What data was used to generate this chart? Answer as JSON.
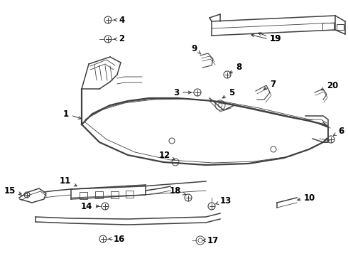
{
  "background_color": "#ffffff",
  "line_color": "#404040",
  "label_color": "#000000",
  "lw_main": 1.1,
  "lw_thin": 0.6,
  "lw_thick": 1.6
}
